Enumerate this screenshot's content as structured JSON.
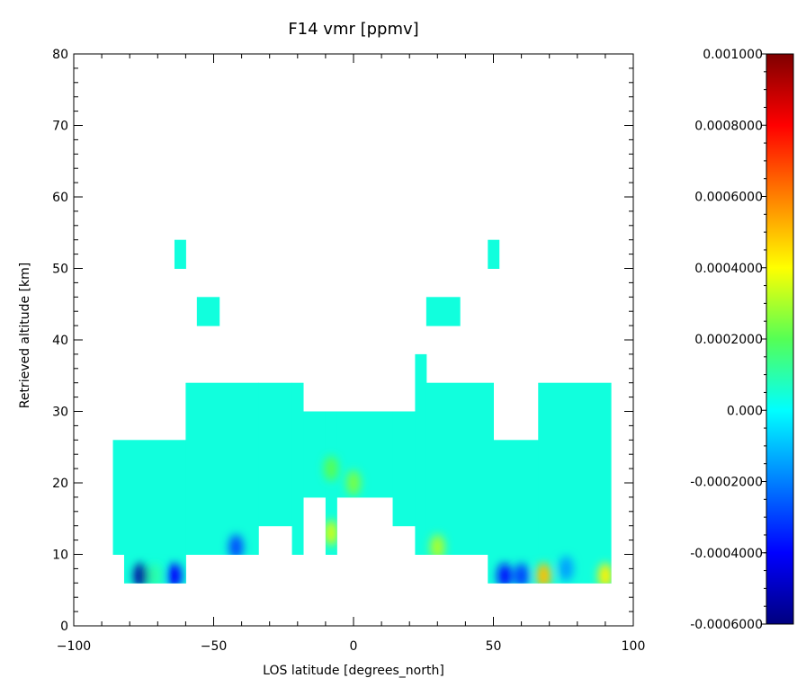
{
  "chart_data": {
    "type": "heatmap",
    "title": "F14 vmr [ppmv]",
    "xlabel": "LOS latitude [degrees_north]",
    "ylabel": "Retrieved altitude [km]",
    "xlim": [
      -100,
      100
    ],
    "ylim": [
      0,
      80
    ],
    "x_ticks": [
      "−100",
      "−50",
      "0",
      "50",
      "100"
    ],
    "y_ticks": [
      "0",
      "10",
      "20",
      "30",
      "40",
      "50",
      "60",
      "70",
      "80"
    ],
    "grid": false,
    "colorbar": {
      "min": -0.0006,
      "max": 0.001,
      "colormap": "jet",
      "tick_values": [
        -0.0006,
        -0.0004,
        -0.0002,
        0.0,
        0.0002,
        0.0004,
        0.0006,
        0.0008,
        0.001
      ],
      "tick_labels": [
        "-0.0006000",
        "-0.0004000",
        "-0.0002000",
        "0.000",
        "0.0002000",
        "0.0004000",
        "0.0006000",
        "0.0008000",
        "0.001000"
      ]
    },
    "background_value": 4e-05,
    "cells": [
      {
        "x": [
          -86,
          -60
        ],
        "y": [
          10,
          26
        ]
      },
      {
        "x": [
          -82,
          -60
        ],
        "y": [
          6,
          10
        ]
      },
      {
        "x": [
          -60,
          -34
        ],
        "y": [
          10,
          34
        ]
      },
      {
        "x": [
          -34,
          -22
        ],
        "y": [
          14,
          34
        ]
      },
      {
        "x": [
          -22,
          -18
        ],
        "y": [
          10,
          34
        ]
      },
      {
        "x": [
          -18,
          -10
        ],
        "y": [
          18,
          30
        ]
      },
      {
        "x": [
          -10,
          -6
        ],
        "y": [
          10,
          30
        ]
      },
      {
        "x": [
          -6,
          14
        ],
        "y": [
          18,
          30
        ]
      },
      {
        "x": [
          14,
          22
        ],
        "y": [
          14,
          30
        ]
      },
      {
        "x": [
          22,
          26
        ],
        "y": [
          10,
          38
        ]
      },
      {
        "x": [
          26,
          50
        ],
        "y": [
          10,
          34
        ]
      },
      {
        "x": [
          50,
          66
        ],
        "y": [
          10,
          26
        ]
      },
      {
        "x": [
          48,
          66
        ],
        "y": [
          6,
          10
        ]
      },
      {
        "x": [
          66,
          92
        ],
        "y": [
          6,
          34
        ]
      },
      {
        "x": [
          -64,
          -60
        ],
        "y": [
          50,
          54
        ]
      },
      {
        "x": [
          -56,
          -48
        ],
        "y": [
          42,
          46
        ]
      },
      {
        "x": [
          26,
          38
        ],
        "y": [
          42,
          46
        ]
      },
      {
        "x": [
          48,
          52
        ],
        "y": [
          50,
          54
        ]
      }
    ],
    "anomalies": [
      {
        "x": -76,
        "y": 7,
        "value": -0.00055
      },
      {
        "x": -71,
        "y": 7,
        "value": 0.0001
      },
      {
        "x": -64,
        "y": 7,
        "value": -0.0004
      },
      {
        "x": -42,
        "y": 11,
        "value": -0.00028
      },
      {
        "x": -8,
        "y": 13,
        "value": 0.00034
      },
      {
        "x": -8,
        "y": 22,
        "value": 0.0002
      },
      {
        "x": 0,
        "y": 20,
        "value": 0.00024
      },
      {
        "x": 30,
        "y": 11,
        "value": 0.0003
      },
      {
        "x": 54,
        "y": 7,
        "value": -0.00038
      },
      {
        "x": 60,
        "y": 7,
        "value": -0.0003
      },
      {
        "x": 68,
        "y": 7,
        "value": 0.0005
      },
      {
        "x": 76,
        "y": 8,
        "value": -0.00015
      },
      {
        "x": 90,
        "y": 7,
        "value": 0.00042
      }
    ]
  }
}
